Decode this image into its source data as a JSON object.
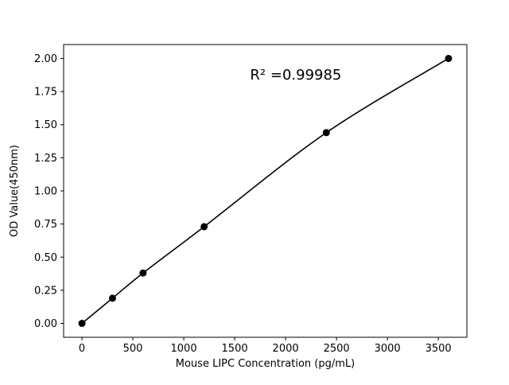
{
  "figure": {
    "background": "#ffffff"
  },
  "chart_data": {
    "type": "scatter",
    "title": "",
    "xlabel": "Mouse LIPC Concentration (pg/mL)",
    "ylabel": "OD Value(450nm)",
    "x": [
      0,
      300,
      600,
      1200,
      2400,
      3600
    ],
    "y": [
      0.0,
      0.19,
      0.38,
      0.73,
      1.44,
      2.0
    ],
    "fit_line": true,
    "annotation": {
      "text": "R² =0.99985",
      "x": 2100,
      "y": 1.84
    },
    "xlim": [
      -180,
      3780
    ],
    "ylim": [
      -0.105,
      2.105
    ],
    "xticks": [
      0,
      500,
      1000,
      1500,
      2000,
      2500,
      3000,
      3500
    ],
    "xtick_labels": [
      "0",
      "500",
      "1000",
      "1500",
      "2000",
      "2500",
      "3000",
      "3500"
    ],
    "yticks": [
      0,
      0.25,
      0.5,
      0.75,
      1.0,
      1.25,
      1.5,
      1.75,
      2.0
    ],
    "ytick_labels": [
      "0.00",
      "0.25",
      "0.50",
      "0.75",
      "1.00",
      "1.25",
      "1.50",
      "1.75",
      "2.00"
    ],
    "grid": false,
    "legend": "none",
    "line_color": "#000000",
    "marker_color": "#000000",
    "marker": "circle"
  }
}
